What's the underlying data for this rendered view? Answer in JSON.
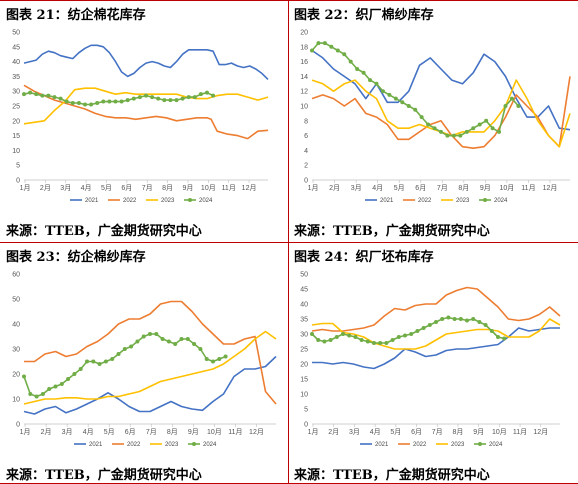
{
  "source_text": "来源：TTEB，广金期货研究中心",
  "months": [
    "1月",
    "2月",
    "3月",
    "4月",
    "5月",
    "6月",
    "7月",
    "8月",
    "9月",
    "10月",
    "11月",
    "12月"
  ],
  "colors": {
    "2021": "#4472c4",
    "2022": "#ed7d31",
    "2023": "#ffc000",
    "2024": "#70ad47",
    "divider": "#c00000"
  },
  "chart_data": [
    {
      "type": "line",
      "title": "图表 21：纺企棉花库存",
      "ylim": [
        0,
        50
      ],
      "yticks": [
        0,
        5,
        10,
        15,
        20,
        25,
        30,
        35,
        40,
        45,
        50
      ],
      "series": [
        {
          "name": "2021",
          "x": [
            0,
            0.3,
            0.6,
            0.9,
            1.2,
            1.5,
            1.8,
            2.1,
            2.4,
            2.7,
            3,
            3.3,
            3.6,
            3.9,
            4.2,
            4.5,
            4.8,
            5.1,
            5.4,
            5.7,
            6,
            6.3,
            6.6,
            6.9,
            7.2,
            7.5,
            7.8,
            8.1,
            8.4,
            8.7,
            9,
            9.3,
            9.6,
            9.9,
            10.2,
            10.5,
            10.8,
            11.1,
            11.4,
            11.7,
            12
          ],
          "values": [
            39.5,
            40,
            40.5,
            42.5,
            43.5,
            43,
            42,
            41.5,
            41,
            43,
            44.5,
            45.5,
            45.5,
            45,
            43,
            40,
            36.5,
            35,
            36,
            38,
            39.5,
            40,
            39.5,
            38.5,
            38,
            40,
            42.5,
            44,
            44,
            44,
            44,
            43.5,
            39,
            39,
            39.5,
            38.5,
            38,
            38.5,
            37.5,
            36,
            34
          ]
        },
        {
          "name": "2022",
          "x": [
            0,
            0.5,
            1,
            1.5,
            2,
            2.5,
            3,
            3.5,
            4,
            4.5,
            5,
            5.5,
            6,
            6.5,
            7,
            7.5,
            8,
            8.5,
            9,
            9.2,
            9.5,
            10,
            10.5,
            11,
            11.5,
            12
          ],
          "values": [
            32,
            30,
            28.5,
            27,
            26,
            25,
            24,
            22.5,
            21.5,
            21,
            21,
            20.5,
            21,
            21.5,
            21,
            20,
            20.5,
            21,
            21,
            20.5,
            16.5,
            15.5,
            15,
            14,
            16.5,
            16.8
          ]
        },
        {
          "name": "2023",
          "x": [
            0,
            0.5,
            1,
            1.5,
            2,
            2.5,
            3,
            3.5,
            4,
            4.5,
            5,
            5.5,
            6,
            6.5,
            7,
            7.5,
            8,
            8.5,
            9,
            9.5,
            10,
            10.5,
            11,
            11.5,
            12
          ],
          "values": [
            19,
            19.5,
            20,
            23.5,
            26.5,
            30.5,
            31,
            31,
            30,
            29,
            29.5,
            29,
            29,
            29,
            29,
            29,
            28,
            27.5,
            27.5,
            28.5,
            29,
            29,
            28,
            27,
            28
          ]
        },
        {
          "name": "2024",
          "x": [
            0,
            0.3,
            0.6,
            0.9,
            1.2,
            1.5,
            1.8,
            2.1,
            2.4,
            2.7,
            3,
            3.3,
            3.6,
            3.9,
            4.2,
            4.5,
            4.8,
            5.1,
            5.4,
            5.7,
            6,
            6.3,
            6.6,
            6.9,
            7.2,
            7.5,
            7.8,
            8.1,
            8.4,
            8.7,
            9,
            9.3
          ],
          "values": [
            29,
            29.5,
            29,
            28.5,
            28.5,
            28,
            27.5,
            26.5,
            26,
            26,
            25.5,
            25.5,
            26,
            26.5,
            26.5,
            26.5,
            26.5,
            27,
            27.5,
            28,
            28.5,
            28,
            27.5,
            27,
            27,
            27,
            27.5,
            28,
            28,
            29,
            29.5,
            28.5
          ]
        }
      ]
    },
    {
      "type": "line",
      "title": "图表 22：织厂棉纱库存",
      "ylim": [
        0,
        20
      ],
      "yticks": [
        0,
        2,
        4,
        6,
        8,
        10,
        12,
        14,
        16,
        18,
        20
      ],
      "series": [
        {
          "name": "2021",
          "x": [
            0,
            0.5,
            1,
            1.5,
            2,
            2.5,
            3,
            3.5,
            4,
            4.5,
            5,
            5.5,
            6,
            6.5,
            7,
            7.5,
            8,
            8.5,
            9,
            9.5,
            10,
            10.5,
            11,
            11.5,
            12
          ],
          "values": [
            17.5,
            16.5,
            15,
            14,
            13,
            11,
            13,
            10.5,
            10.5,
            12,
            15.5,
            16.5,
            15,
            13.5,
            13,
            14.5,
            17,
            16,
            14,
            11,
            8.5,
            8.5,
            10,
            7,
            6.8
          ]
        },
        {
          "name": "2022",
          "x": [
            0,
            0.5,
            1,
            1.5,
            2,
            2.5,
            3,
            3.5,
            4,
            4.5,
            5,
            5.5,
            6,
            6.5,
            7,
            7.5,
            8,
            8.5,
            9,
            9.5,
            10,
            10.5,
            11,
            11.5,
            12
          ],
          "values": [
            11,
            11.5,
            11,
            10,
            11,
            9,
            8.5,
            7.5,
            5.5,
            5.5,
            6.5,
            7.5,
            8,
            6,
            4.5,
            4.3,
            4.5,
            6,
            8.5,
            11.5,
            10,
            8.5,
            6,
            4.5,
            14
          ]
        },
        {
          "name": "2023",
          "x": [
            0,
            0.5,
            1,
            1.5,
            2,
            2.5,
            3,
            3.5,
            4,
            4.5,
            5,
            5.5,
            6,
            6.5,
            7,
            7.5,
            8,
            8.5,
            9,
            9.5,
            10,
            10.5,
            11,
            11.5,
            12
          ],
          "values": [
            13.5,
            13,
            12,
            13,
            13.5,
            12,
            11,
            8,
            7,
            7,
            7.5,
            7,
            6.5,
            6,
            6.5,
            6.5,
            6.5,
            8,
            10,
            13.5,
            11,
            8,
            6,
            4.5,
            9
          ]
        },
        {
          "name": "2024",
          "x": [
            0,
            0.3,
            0.6,
            0.9,
            1.2,
            1.5,
            1.8,
            2.1,
            2.4,
            2.7,
            3,
            3.3,
            3.6,
            3.9,
            4.2,
            4.5,
            4.8,
            5.1,
            5.4,
            5.7,
            6,
            6.3,
            6.6,
            6.9,
            7.2,
            7.5,
            7.8,
            8.1,
            8.4,
            8.7,
            9,
            9.3,
            9.6
          ],
          "values": [
            17.5,
            18.5,
            18.5,
            18,
            17.5,
            17,
            16,
            15,
            14.5,
            13.5,
            13,
            12,
            11.5,
            11,
            10.5,
            10,
            9.5,
            8.5,
            7.5,
            7,
            6.5,
            6,
            6,
            6,
            6.5,
            7,
            7.5,
            8,
            7,
            6.5,
            10,
            11,
            10
          ]
        }
      ]
    },
    {
      "type": "line",
      "title": "图表 23：纺企棉纱库存",
      "ylim": [
        0,
        60
      ],
      "yticks": [
        0,
        10,
        20,
        30,
        40,
        50,
        60
      ],
      "series": [
        {
          "name": "2021",
          "x": [
            0,
            0.5,
            1,
            1.5,
            2,
            2.5,
            3,
            3.5,
            4,
            4.5,
            5,
            5.5,
            6,
            6.5,
            7,
            7.5,
            8,
            8.5,
            9,
            9.5,
            10,
            10.5,
            11,
            11.5,
            12
          ],
          "values": [
            5,
            4,
            6,
            7,
            4.5,
            6,
            8,
            10,
            12.5,
            10,
            7,
            5,
            5,
            7,
            9,
            7,
            6,
            5.5,
            9,
            12,
            19,
            22,
            22,
            23,
            27
          ]
        },
        {
          "name": "2022",
          "x": [
            0,
            0.5,
            1,
            1.5,
            2,
            2.5,
            3,
            3.5,
            4,
            4.5,
            5,
            5.5,
            6,
            6.5,
            7,
            7.5,
            8,
            8.5,
            9,
            9.5,
            10,
            10.5,
            11,
            11.5,
            12
          ],
          "values": [
            25,
            25,
            28,
            29,
            27,
            28,
            31,
            33,
            36,
            40,
            42,
            42,
            44,
            48,
            49,
            49,
            45,
            40,
            36,
            32,
            32,
            34,
            35,
            13,
            8
          ]
        },
        {
          "name": "2023",
          "x": [
            0,
            0.5,
            1,
            1.5,
            2,
            2.5,
            3,
            3.5,
            4,
            4.5,
            5,
            5.5,
            6,
            6.5,
            7,
            7.5,
            8,
            8.5,
            9,
            9.5,
            10,
            10.5,
            11,
            11.5,
            12
          ],
          "values": [
            8,
            9,
            10,
            10,
            10.5,
            10.5,
            10,
            10,
            11,
            11,
            12,
            13,
            15,
            17,
            18,
            19,
            20,
            21,
            22,
            24,
            27,
            30,
            34,
            37,
            34
          ]
        },
        {
          "name": "2024",
          "x": [
            0,
            0.3,
            0.6,
            0.9,
            1.2,
            1.5,
            1.8,
            2.1,
            2.4,
            2.7,
            3,
            3.3,
            3.6,
            3.9,
            4.2,
            4.5,
            4.8,
            5.1,
            5.4,
            5.7,
            6,
            6.3,
            6.6,
            6.9,
            7.2,
            7.5,
            7.8,
            8.1,
            8.4,
            8.7,
            9,
            9.3,
            9.6
          ],
          "values": [
            19,
            12,
            11,
            12,
            14,
            15,
            16,
            18,
            20,
            22,
            25,
            25,
            24,
            25,
            26,
            28,
            30,
            31,
            33,
            35,
            36,
            36,
            34,
            33,
            32,
            34,
            34,
            32,
            30,
            26,
            25,
            26,
            27
          ]
        }
      ]
    },
    {
      "type": "line",
      "title": "图表 24：织厂坯布库存",
      "ylim": [
        0,
        50
      ],
      "yticks": [
        0,
        5,
        10,
        15,
        20,
        25,
        30,
        35,
        40,
        45,
        50
      ],
      "series": [
        {
          "name": "2021",
          "x": [
            0,
            0.5,
            1,
            1.5,
            2,
            2.5,
            3,
            3.5,
            4,
            4.5,
            5,
            5.5,
            6,
            6.5,
            7,
            7.5,
            8,
            8.5,
            9,
            9.5,
            10,
            10.5,
            11,
            11.5,
            12
          ],
          "values": [
            20.5,
            20.5,
            20,
            20.5,
            20,
            19,
            18.5,
            20,
            22,
            25,
            24,
            22.5,
            23,
            24.5,
            25,
            25,
            25.5,
            26,
            26.5,
            29,
            32,
            31,
            31.5,
            32,
            32
          ]
        },
        {
          "name": "2022",
          "x": [
            0,
            0.5,
            1,
            1.5,
            2,
            2.5,
            3,
            3.5,
            4,
            4.5,
            5,
            5.5,
            6,
            6.5,
            7,
            7.5,
            8,
            8.5,
            9,
            9.5,
            10,
            10.5,
            11,
            11.5,
            12
          ],
          "values": [
            31,
            31.5,
            31,
            31,
            31.5,
            32,
            33,
            36,
            38.5,
            38,
            39.5,
            40,
            40,
            43,
            44.5,
            45.5,
            45,
            42,
            39,
            35,
            34.5,
            35,
            36.5,
            39,
            36
          ]
        },
        {
          "name": "2023",
          "x": [
            0,
            0.5,
            1,
            1.5,
            2,
            2.5,
            3,
            3.5,
            4,
            4.5,
            5,
            5.5,
            6,
            6.5,
            7,
            7.5,
            8,
            8.5,
            9,
            9.5,
            10,
            10.5,
            11,
            11.5,
            12
          ],
          "values": [
            33,
            33.5,
            33.5,
            30.5,
            30,
            29,
            27,
            26,
            25,
            25,
            25,
            26,
            28,
            30,
            30.5,
            31,
            31.5,
            31.5,
            31,
            29,
            29,
            29,
            31,
            35,
            33
          ]
        },
        {
          "name": "2024",
          "x": [
            0,
            0.3,
            0.6,
            0.9,
            1.2,
            1.5,
            1.8,
            2.1,
            2.4,
            2.7,
            3,
            3.3,
            3.6,
            3.9,
            4.2,
            4.5,
            4.8,
            5.1,
            5.4,
            5.7,
            6,
            6.3,
            6.6,
            6.9,
            7.2,
            7.5,
            7.8,
            8.1,
            8.4,
            8.7,
            9,
            9.3
          ],
          "values": [
            30,
            28,
            27.5,
            28,
            29,
            30,
            29.5,
            29,
            28,
            27.5,
            27,
            27,
            27,
            28,
            29,
            29.5,
            30,
            31,
            32,
            33,
            34,
            35,
            35.5,
            35,
            35,
            34.5,
            35,
            34,
            33,
            31,
            29,
            28.5
          ]
        }
      ]
    }
  ]
}
